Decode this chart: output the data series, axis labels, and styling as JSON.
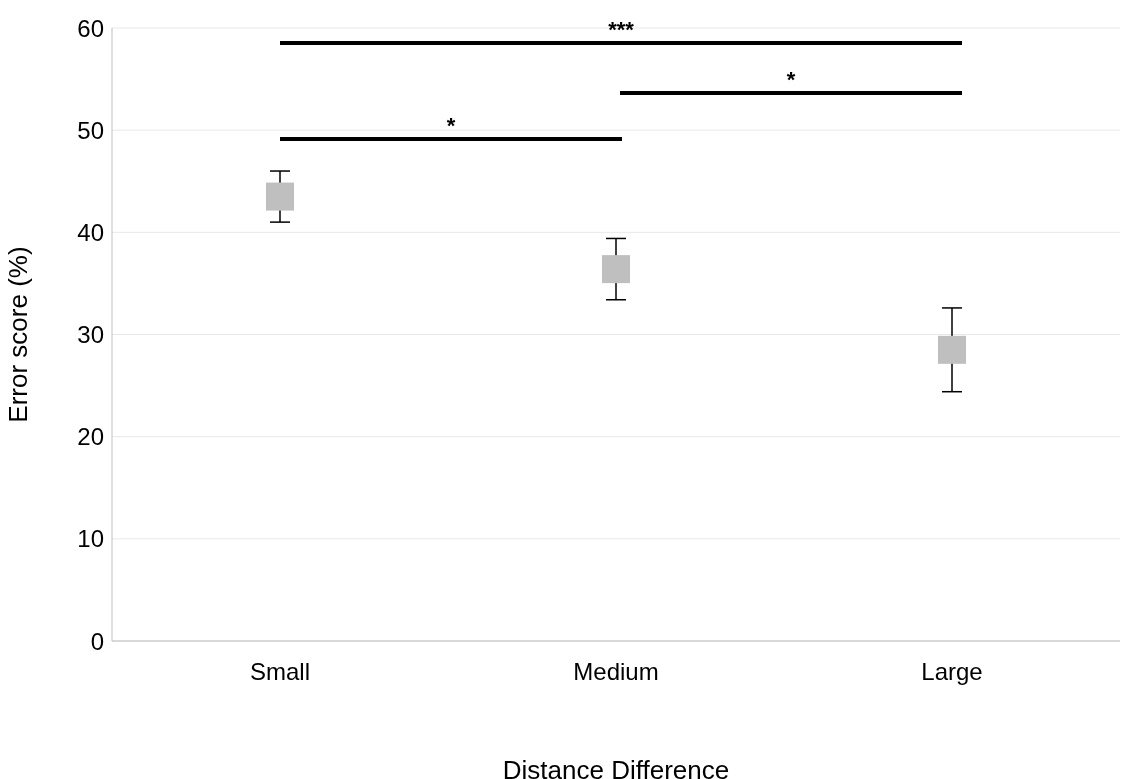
{
  "chart_data": {
    "type": "scatter",
    "xlabel": "Distance Difference",
    "ylabel": "Error score (%)",
    "categories": [
      "Small",
      "Medium",
      "Large"
    ],
    "values": [
      43.5,
      36.4,
      28.5
    ],
    "errors": [
      2.5,
      3,
      4.1
    ],
    "color": "#bfbfbf",
    "marker": "square",
    "ylim": [
      0,
      60
    ],
    "yticks": [
      0,
      10,
      20,
      30,
      40,
      50,
      60
    ],
    "grid": "y",
    "annotations": [
      "***",
      "*",
      "*"
    ]
  }
}
